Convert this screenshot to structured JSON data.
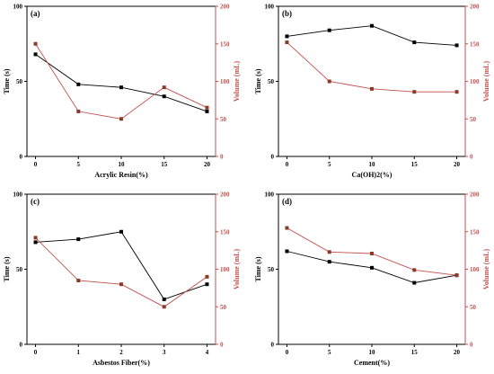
{
  "colors": {
    "time": "#000000",
    "volume": "#c0504d"
  },
  "chart_data": [
    {
      "type": "line",
      "panel_label": "(a)",
      "xlabel": "Acrylic Resin(%)",
      "ylabel": "Time (s)",
      "y2label": "Volume (mL)",
      "x": [
        0,
        5,
        10,
        15,
        20
      ],
      "xticks": [
        0,
        5,
        10,
        15,
        20
      ],
      "xlim": [
        -1,
        21
      ],
      "ylim": [
        0,
        100
      ],
      "yticks": [
        0,
        50,
        100
      ],
      "y2lim": [
        0,
        200
      ],
      "y2ticks": [
        0,
        50,
        100,
        150,
        200
      ],
      "series": [
        {
          "axis": "left",
          "values": [
            68,
            48,
            46,
            40,
            30
          ],
          "color": "#000000"
        },
        {
          "axis": "right",
          "values": [
            150,
            60,
            50,
            92,
            65
          ],
          "color": "#c0504d"
        }
      ]
    },
    {
      "type": "line",
      "panel_label": "(b)",
      "xlabel": "Ca(OH)2(%)",
      "ylabel": "Time (s)",
      "y2label": "Volume (mL)",
      "x": [
        0,
        5,
        10,
        15,
        20
      ],
      "xticks": [
        0,
        5,
        10,
        15,
        20
      ],
      "xlim": [
        -1,
        21
      ],
      "ylim": [
        0,
        100
      ],
      "yticks": [
        0,
        50,
        100
      ],
      "y2lim": [
        0,
        200
      ],
      "y2ticks": [
        0,
        50,
        100,
        150,
        200
      ],
      "series": [
        {
          "axis": "left",
          "values": [
            80,
            84,
            87,
            76,
            74
          ],
          "color": "#000000"
        },
        {
          "axis": "right",
          "values": [
            152,
            100,
            90,
            86,
            86
          ],
          "color": "#c0504d"
        }
      ]
    },
    {
      "type": "line",
      "panel_label": "(c)",
      "xlabel": "Asbestos Fiber(%)",
      "ylabel": "Time (s)",
      "y2label": "Volume (mL)",
      "x": [
        0,
        1,
        2,
        3,
        4
      ],
      "xticks": [
        0,
        1,
        2,
        3,
        4
      ],
      "xlim": [
        -0.2,
        4.2
      ],
      "ylim": [
        0,
        100
      ],
      "yticks": [
        0,
        50,
        100
      ],
      "y2lim": [
        0,
        200
      ],
      "y2ticks": [
        0,
        50,
        100,
        150,
        200
      ],
      "series": [
        {
          "axis": "left",
          "values": [
            68,
            70,
            75,
            30,
            40
          ],
          "color": "#000000"
        },
        {
          "axis": "right",
          "values": [
            142,
            85,
            80,
            50,
            90
          ],
          "color": "#c0504d"
        }
      ]
    },
    {
      "type": "line",
      "panel_label": "(d)",
      "xlabel": "Cement(%)",
      "ylabel": "Time (s)",
      "y2label": "Volume (mL)",
      "x": [
        0,
        5,
        10,
        15,
        20
      ],
      "xticks": [
        0,
        5,
        10,
        15,
        20
      ],
      "xlim": [
        -1,
        21
      ],
      "ylim": [
        0,
        100
      ],
      "yticks": [
        0,
        50,
        100
      ],
      "y2lim": [
        0,
        200
      ],
      "y2ticks": [
        0,
        50,
        100,
        150,
        200
      ],
      "series": [
        {
          "axis": "left",
          "values": [
            62,
            55,
            51,
            41,
            46
          ],
          "color": "#000000"
        },
        {
          "axis": "right",
          "values": [
            155,
            123,
            121,
            99,
            92
          ],
          "color": "#c0504d"
        }
      ]
    }
  ]
}
